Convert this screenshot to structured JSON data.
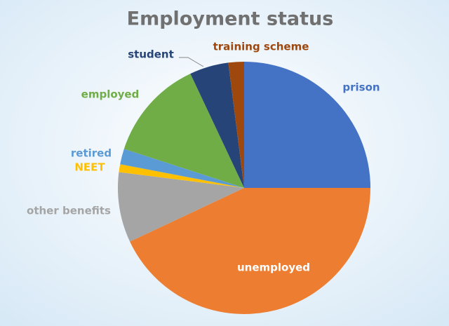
{
  "chart_data": {
    "type": "pie",
    "title": "Employment status",
    "categories": [
      "prison",
      "unemployed",
      "other benefits",
      "NEET",
      "retired",
      "employed",
      "student",
      "training scheme"
    ],
    "values": [
      25,
      43,
      9,
      1,
      2,
      13,
      5,
      2
    ],
    "colors": [
      "#4472c4",
      "#ed7d31",
      "#a5a5a5",
      "#ffc000",
      "#5b9bd5",
      "#70ad47",
      "#264478",
      "#9e480e"
    ]
  }
}
